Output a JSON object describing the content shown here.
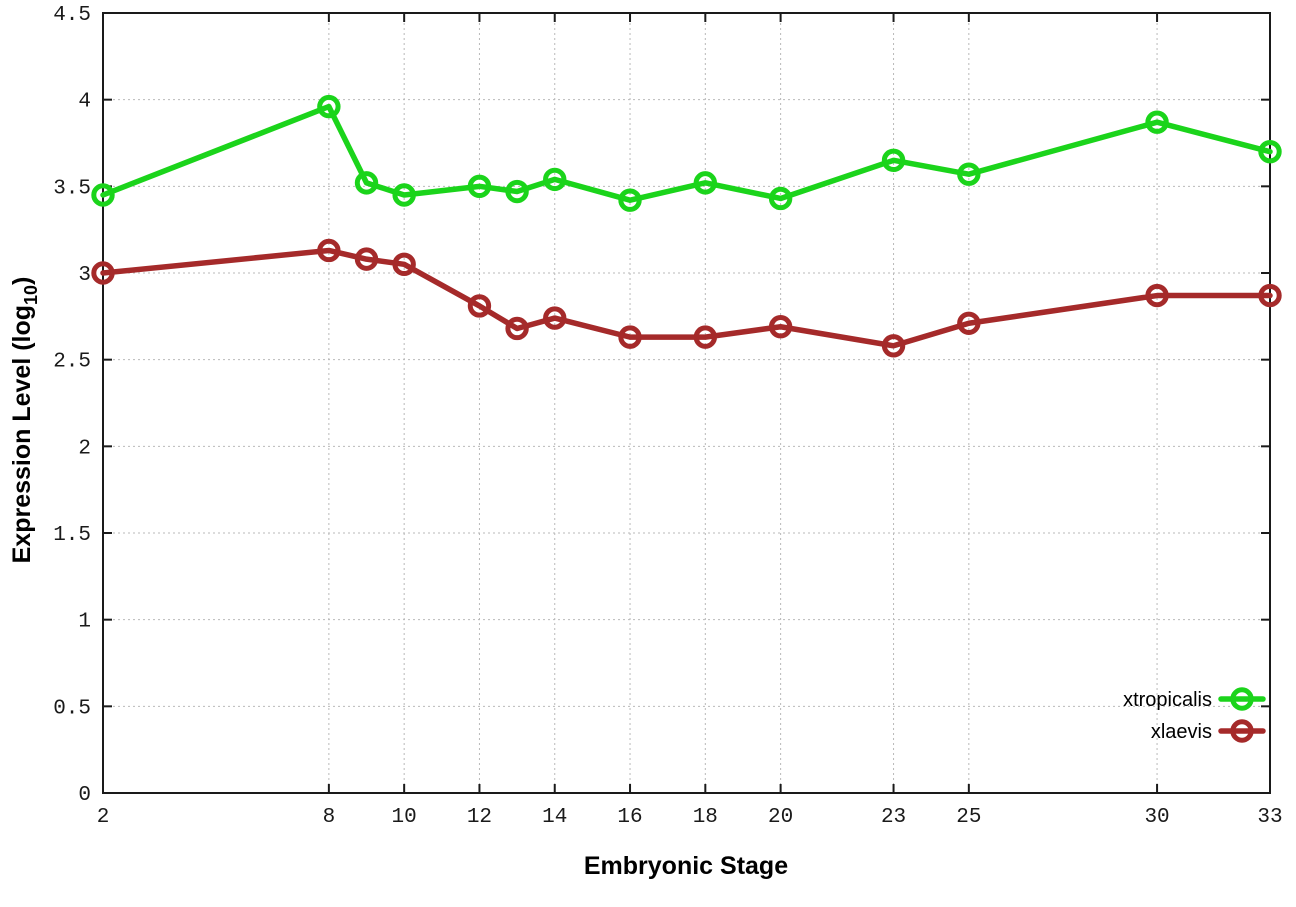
{
  "figure": {
    "background": "#ffffff",
    "text_color": "#000000",
    "grid_color": "#b9b9b9",
    "axis_color": "#1a1a1a"
  },
  "chart_data": {
    "type": "line",
    "title": "",
    "xlabel": "Embryonic Stage",
    "ylabel": "Expression Level (log10)",
    "ylabel_parts": {
      "main": "Expression Level (log",
      "sub": "10",
      "end": ")"
    },
    "xlim": [
      2,
      33
    ],
    "ylim": [
      0,
      4.5
    ],
    "grid": true,
    "legend_position": "bottom-right",
    "marker": "open-circle",
    "x_tick_values": [
      2,
      8,
      10,
      12,
      14,
      16,
      18,
      20,
      23,
      25,
      30,
      33
    ],
    "x_tick_labels": [
      "2",
      "8",
      "10",
      "12",
      "14",
      "16",
      "18",
      "20",
      "23",
      "25",
      "30",
      "33"
    ],
    "y_tick_values": [
      0,
      0.5,
      1,
      1.5,
      2,
      2.5,
      3,
      3.5,
      4,
      4.5
    ],
    "y_tick_labels": [
      "0",
      "0.5",
      "1",
      "1.5",
      "2",
      "2.5",
      "3",
      "3.5",
      "4",
      "4.5"
    ],
    "x": [
      2,
      8,
      9,
      10,
      12,
      13,
      14,
      16,
      18,
      20,
      23,
      25,
      30,
      33
    ],
    "series": [
      {
        "name": "xtropicalis",
        "color": "#1bd41b",
        "values": [
          3.45,
          3.96,
          3.52,
          3.45,
          3.5,
          3.47,
          3.54,
          3.42,
          3.52,
          3.43,
          3.65,
          3.57,
          3.87,
          3.7
        ]
      },
      {
        "name": "xlaevis",
        "color": "#a52a2a",
        "values": [
          3.0,
          3.13,
          3.08,
          3.05,
          2.81,
          2.68,
          2.74,
          2.63,
          2.63,
          2.69,
          2.58,
          2.71,
          2.87,
          2.87
        ]
      }
    ]
  }
}
